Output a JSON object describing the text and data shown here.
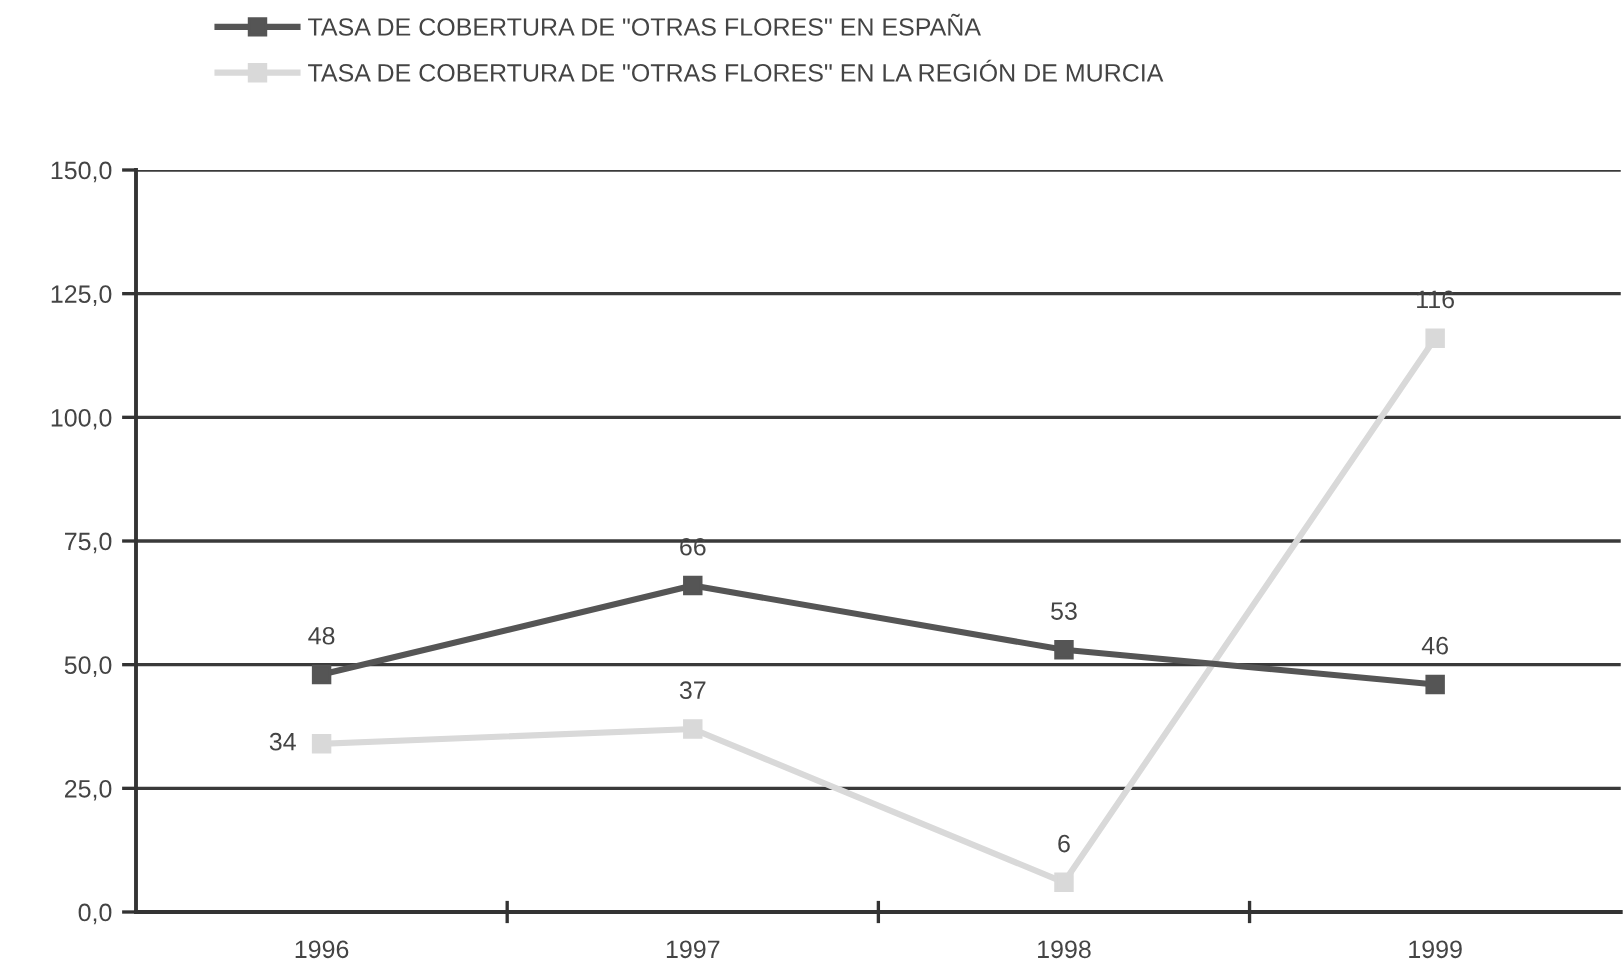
{
  "chart_data": {
    "type": "line",
    "categories": [
      "1996",
      "1997",
      "1998",
      "1999"
    ],
    "series": [
      {
        "name": "TASA DE COBERTURA DE \"OTRAS FLORES\" EN ESPAÑA",
        "color": "#555555",
        "values": [
          48,
          66,
          53,
          46
        ]
      },
      {
        "name": "TASA DE COBERTURA DE \"OTRAS FLORES\" EN LA REGIÓN DE MURCIA",
        "color": "#d9d9d9",
        "values": [
          34,
          37,
          6,
          116
        ]
      }
    ],
    "ylim": [
      0,
      150
    ],
    "yticks": [
      {
        "value": 0,
        "label": "0,0"
      },
      {
        "value": 25,
        "label": "25,0"
      },
      {
        "value": 50,
        "label": "50,0"
      },
      {
        "value": 75,
        "label": "75,0"
      },
      {
        "value": 100,
        "label": "100,0"
      },
      {
        "value": 125,
        "label": "125,0"
      },
      {
        "value": 150,
        "label": "150,0"
      }
    ],
    "grid": "y",
    "legend": "top",
    "marker": "square",
    "line_style": "solid",
    "data_labels": true
  }
}
